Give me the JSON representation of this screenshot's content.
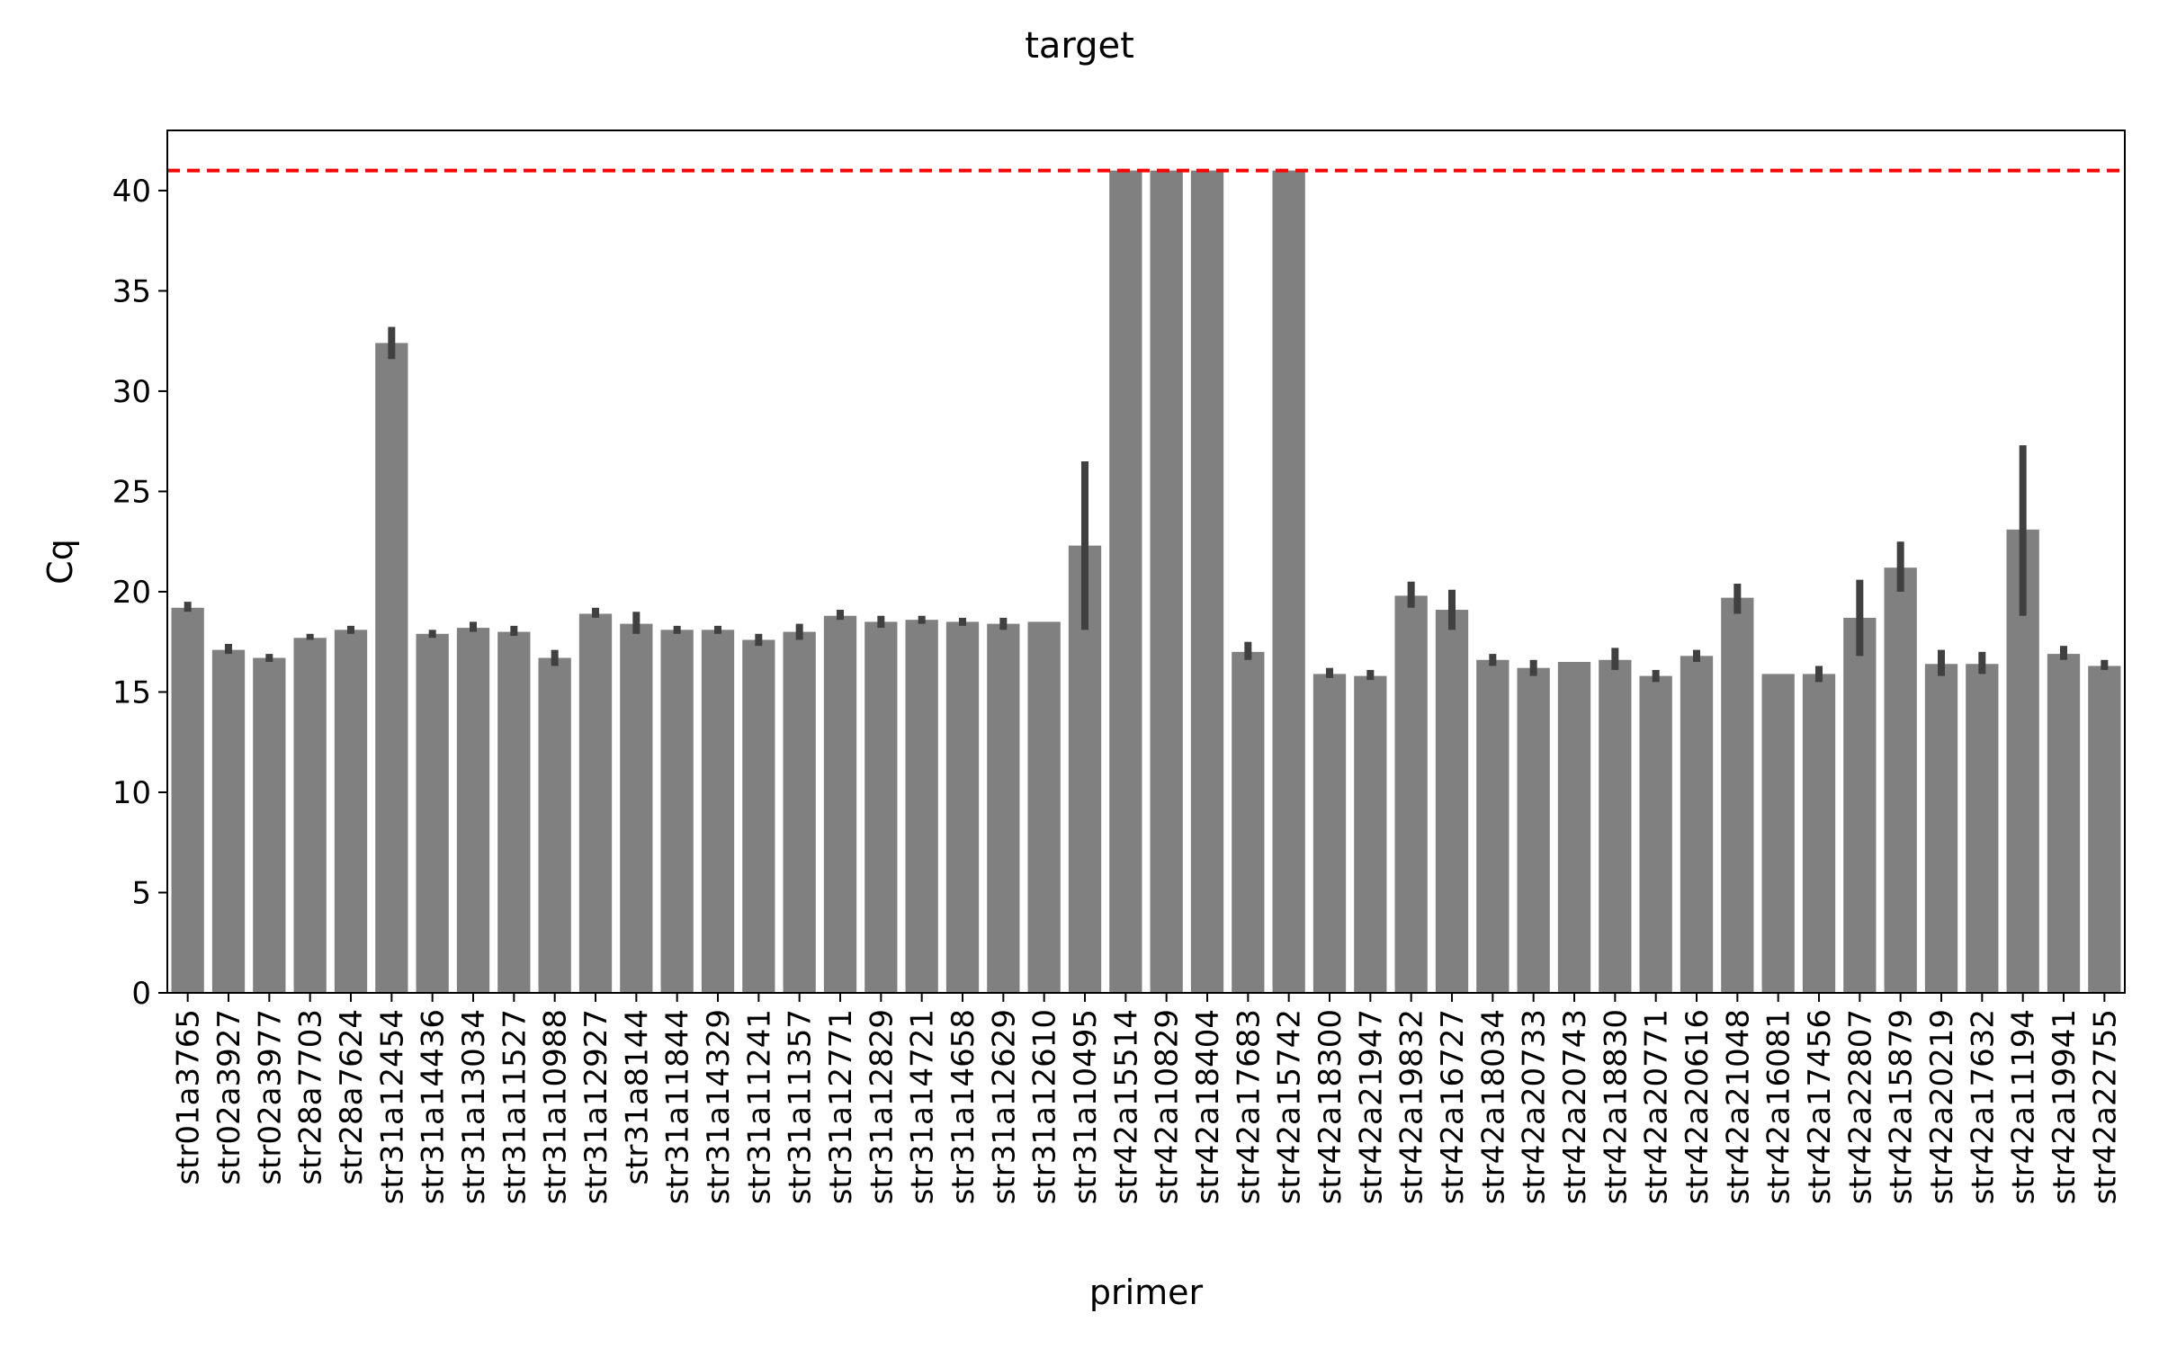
{
  "chart_data": {
    "type": "bar",
    "title": "target",
    "xlabel": "primer",
    "ylabel": "Cq",
    "ylim": [
      0,
      43
    ],
    "yticks": [
      0,
      5,
      10,
      15,
      20,
      25,
      30,
      35,
      40
    ],
    "grid": false,
    "bar_color": "#808080",
    "errorbar_color": "#404040",
    "reference_line": {
      "y": 41,
      "color": "#ff0000",
      "style": "dashed"
    },
    "categories": [
      "str01a3765",
      "str02a3927",
      "str02a3977",
      "str28a7703",
      "str28a7624",
      "str31a12454",
      "str31a14436",
      "str31a13034",
      "str31a11527",
      "str31a10988",
      "str31a12927",
      "str31a8144",
      "str31a11844",
      "str31a14329",
      "str31a11241",
      "str31a11357",
      "str31a12771",
      "str31a12829",
      "str31a14721",
      "str31a14658",
      "str31a12629",
      "str31a12610",
      "str31a10495",
      "str42a15514",
      "str42a10829",
      "str42a18404",
      "str42a17683",
      "str42a15742",
      "str42a18300",
      "str42a21947",
      "str42a19832",
      "str42a16727",
      "str42a18034",
      "str42a20733",
      "str42a20743",
      "str42a18830",
      "str42a20771",
      "str42a20616",
      "str42a21048",
      "str42a16081",
      "str42a17456",
      "str42a22807",
      "str42a15879",
      "str42a20219",
      "str42a17632",
      "str42a11194",
      "str42a19941",
      "str42a22755"
    ],
    "values": [
      19.2,
      17.1,
      16.7,
      17.7,
      18.1,
      32.4,
      17.9,
      18.2,
      18.0,
      16.7,
      18.9,
      18.4,
      18.1,
      18.1,
      17.6,
      18.0,
      18.8,
      18.5,
      18.6,
      18.5,
      18.4,
      18.5,
      22.3,
      41.0,
      41.0,
      41.0,
      17.0,
      41.0,
      15.9,
      15.8,
      19.8,
      19.1,
      16.6,
      16.2,
      16.5,
      16.6,
      15.8,
      16.8,
      19.7,
      15.9,
      15.9,
      18.7,
      21.2,
      16.4,
      16.4,
      23.1,
      16.9,
      16.3
    ],
    "error_low": [
      19.0,
      16.9,
      16.5,
      17.6,
      17.9,
      31.6,
      17.7,
      18.0,
      17.8,
      16.3,
      18.7,
      17.9,
      17.9,
      17.9,
      17.3,
      17.6,
      18.6,
      18.2,
      18.4,
      18.3,
      18.1,
      18.5,
      18.1,
      41.0,
      41.0,
      41.0,
      16.6,
      41.0,
      15.7,
      15.6,
      19.2,
      18.1,
      16.3,
      15.8,
      16.5,
      16.1,
      15.5,
      16.5,
      18.9,
      15.9,
      15.5,
      16.8,
      20.0,
      15.8,
      15.9,
      18.8,
      16.6,
      16.1
    ],
    "error_high": [
      19.5,
      17.4,
      16.9,
      17.9,
      18.3,
      33.2,
      18.1,
      18.5,
      18.3,
      17.1,
      19.2,
      19.0,
      18.3,
      18.3,
      17.9,
      18.4,
      19.1,
      18.8,
      18.8,
      18.7,
      18.7,
      18.5,
      26.5,
      41.0,
      41.0,
      41.0,
      17.5,
      41.0,
      16.2,
      16.1,
      20.5,
      20.1,
      16.9,
      16.6,
      16.5,
      17.2,
      16.1,
      17.1,
      20.4,
      15.9,
      16.3,
      20.6,
      22.5,
      17.1,
      17.0,
      27.3,
      17.3,
      16.6
    ]
  }
}
